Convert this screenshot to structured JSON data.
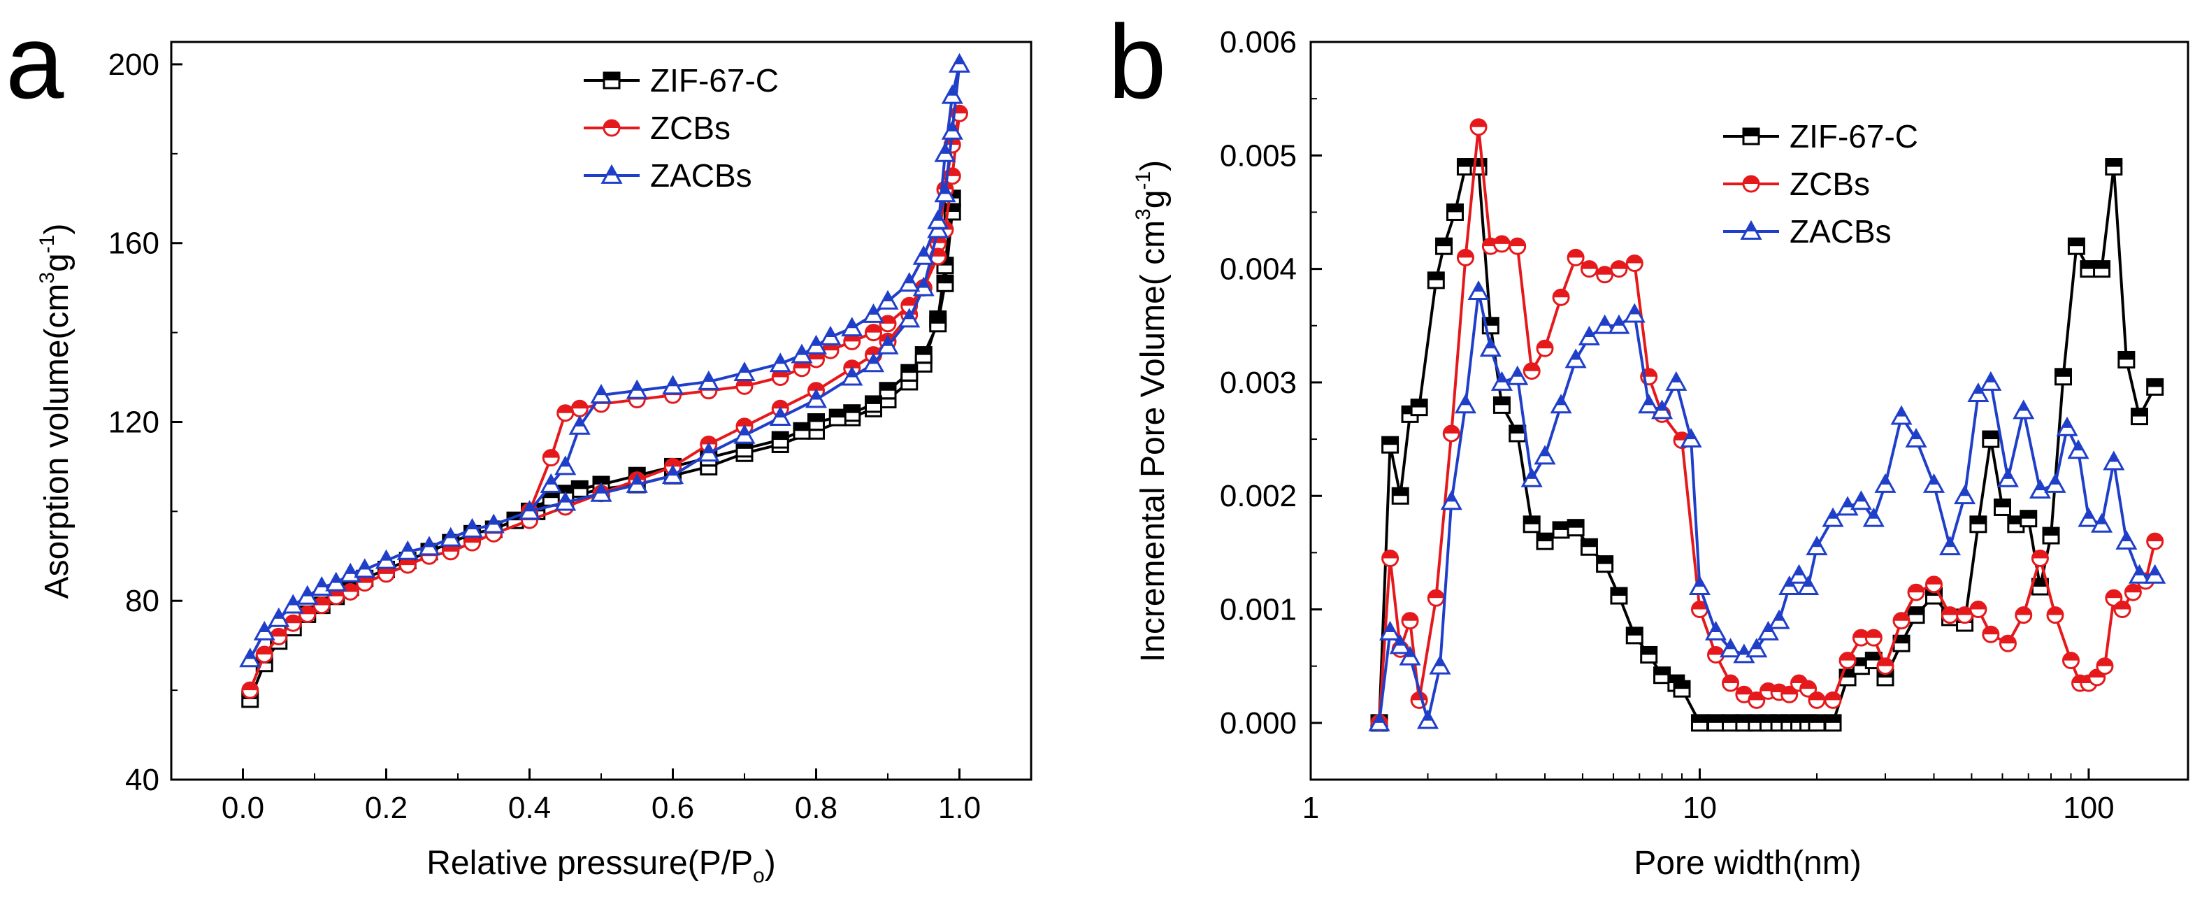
{
  "chart_data": [
    {
      "panel": "a",
      "type": "line",
      "xlabel_main": "Relative pressure(P/P",
      "xlabel_sub": "o",
      "xlabel_end": ")",
      "ylabel_main": "Asorption volume(cm",
      "ylabel_sup1": "3",
      "ylabel_mid": "g",
      "ylabel_sup2": "-1",
      "ylabel_end": ")",
      "xlim": [
        -0.1,
        1.1
      ],
      "ylim": [
        40,
        205
      ],
      "xticks": [
        0.0,
        0.2,
        0.4,
        0.6,
        0.8,
        1.0
      ],
      "xtick_labels": [
        "0.0",
        "0.2",
        "0.4",
        "0.6",
        "0.8",
        "1.0"
      ],
      "yticks": [
        40,
        80,
        120,
        160,
        200
      ],
      "ytick_labels": [
        "40",
        "80",
        "120",
        "160",
        "200"
      ],
      "legend_position": "top-center",
      "series": [
        {
          "name": "ZIF-67-C",
          "color": "#000000",
          "marker": "square",
          "x": [
            0.01,
            0.03,
            0.05,
            0.07,
            0.09,
            0.11,
            0.13,
            0.15,
            0.17,
            0.2,
            0.23,
            0.26,
            0.29,
            0.32,
            0.35,
            0.38,
            0.41,
            0.45,
            0.5,
            0.55,
            0.6,
            0.65,
            0.7,
            0.75,
            0.8,
            0.85,
            0.88,
            0.9,
            0.93,
            0.95,
            0.97,
            0.98,
            0.99,
            0.99,
            0.98,
            0.97,
            0.95,
            0.93,
            0.9,
            0.88,
            0.85,
            0.83,
            0.8,
            0.78,
            0.75,
            0.7,
            0.65,
            0.6,
            0.55,
            0.5,
            0.47,
            0.45,
            0.43,
            0.4
          ],
          "y": [
            58,
            66,
            71,
            74,
            77,
            79,
            81,
            83,
            85,
            87,
            89,
            91,
            93,
            95,
            96,
            98,
            100,
            103,
            105,
            106,
            108,
            110,
            113,
            115,
            118,
            121,
            123,
            125,
            129,
            133,
            143,
            155,
            170,
            167,
            151,
            142,
            135,
            131,
            127,
            124,
            122,
            121,
            120,
            118,
            116,
            114,
            112,
            110,
            108,
            106,
            105,
            104,
            103,
            100
          ]
        },
        {
          "name": "ZCBs",
          "color": "#e5191c",
          "marker": "circle",
          "x": [
            0.01,
            0.03,
            0.05,
            0.07,
            0.09,
            0.11,
            0.13,
            0.15,
            0.17,
            0.2,
            0.23,
            0.26,
            0.29,
            0.32,
            0.35,
            0.4,
            0.45,
            0.5,
            0.55,
            0.6,
            0.65,
            0.7,
            0.75,
            0.8,
            0.85,
            0.88,
            0.9,
            0.93,
            0.95,
            0.97,
            0.98,
            0.99,
            1.0,
            0.99,
            0.98,
            0.97,
            0.95,
            0.93,
            0.9,
            0.88,
            0.85,
            0.82,
            0.8,
            0.78,
            0.75,
            0.7,
            0.65,
            0.6,
            0.55,
            0.5,
            0.47,
            0.45,
            0.43,
            0.4
          ],
          "y": [
            60,
            68,
            72,
            75,
            77,
            79,
            81,
            82,
            84,
            86,
            88,
            90,
            91,
            93,
            95,
            98,
            101,
            104,
            107,
            110,
            115,
            119,
            123,
            127,
            132,
            135,
            138,
            144,
            150,
            160,
            172,
            182,
            189,
            175,
            163,
            157,
            150,
            146,
            142,
            140,
            138,
            136,
            134,
            132,
            130,
            128,
            127,
            126,
            125,
            124,
            123,
            122,
            112,
            100
          ]
        },
        {
          "name": "ZACBs",
          "color": "#1f3fc9",
          "marker": "triangle",
          "x": [
            0.01,
            0.03,
            0.05,
            0.07,
            0.09,
            0.11,
            0.13,
            0.15,
            0.17,
            0.2,
            0.23,
            0.26,
            0.29,
            0.32,
            0.35,
            0.4,
            0.45,
            0.5,
            0.55,
            0.6,
            0.65,
            0.7,
            0.75,
            0.8,
            0.85,
            0.88,
            0.9,
            0.93,
            0.95,
            0.97,
            0.98,
            0.99,
            1.0,
            0.99,
            0.98,
            0.97,
            0.95,
            0.93,
            0.9,
            0.88,
            0.85,
            0.82,
            0.8,
            0.78,
            0.75,
            0.7,
            0.65,
            0.6,
            0.55,
            0.5,
            0.47,
            0.45,
            0.43,
            0.4
          ],
          "y": [
            67,
            73,
            76,
            79,
            81,
            83,
            84,
            86,
            87,
            89,
            91,
            92,
            94,
            96,
            97,
            100,
            102,
            104,
            106,
            108,
            113,
            117,
            121,
            125,
            130,
            133,
            137,
            143,
            150,
            163,
            180,
            193,
            200,
            185,
            171,
            165,
            157,
            151,
            147,
            144,
            141,
            139,
            137,
            135,
            133,
            131,
            129,
            128,
            127,
            126,
            119,
            110,
            106,
            100
          ]
        }
      ]
    },
    {
      "panel": "b",
      "type": "line",
      "xscale": "log",
      "xlabel": "Pore width(nm)",
      "ylabel_main": "Incremental Pore Volume( cm",
      "ylabel_sup1": "3",
      "ylabel_mid": "g",
      "ylabel_sup2": "-1",
      "ylabel_end": ")",
      "xlim": [
        1,
        180
      ],
      "ylim": [
        -0.0005,
        0.006
      ],
      "xticks": [
        1,
        10,
        100
      ],
      "xtick_labels": [
        "1",
        "10",
        "100"
      ],
      "yticks": [
        0.0,
        0.001,
        0.002,
        0.003,
        0.004,
        0.005,
        0.006
      ],
      "ytick_labels": [
        "0.000",
        "0.001",
        "0.002",
        "0.003",
        "0.004",
        "0.005",
        "0.006"
      ],
      "legend_position": "top-right",
      "series": [
        {
          "name": "ZIF-67-C",
          "color": "#000000",
          "marker": "square",
          "x": [
            1.5,
            1.6,
            1.7,
            1.8,
            1.9,
            2.1,
            2.2,
            2.35,
            2.5,
            2.7,
            2.9,
            3.1,
            3.4,
            3.7,
            4.0,
            4.4,
            4.8,
            5.2,
            5.7,
            6.2,
            6.8,
            7.4,
            8.0,
            8.7,
            9.0,
            10.0,
            11.0,
            12.0,
            13.0,
            14.0,
            15.0,
            16.0,
            17.0,
            18.0,
            19.0,
            20.0,
            22.0,
            24.0,
            26.0,
            28.0,
            30.0,
            33.0,
            36.0,
            40.0,
            44.0,
            48.0,
            52.0,
            56.0,
            60.0,
            65.0,
            70.0,
            75.0,
            80.0,
            86.0,
            93.0,
            100.0,
            108.0,
            116.0,
            125.0,
            135.0,
            148.0
          ],
          "y": [
            0.0,
            0.00245,
            0.002,
            0.00272,
            0.00278,
            0.0039,
            0.0042,
            0.0045,
            0.0049,
            0.0049,
            0.0035,
            0.0028,
            0.00255,
            0.00175,
            0.0016,
            0.0017,
            0.00172,
            0.00155,
            0.0014,
            0.00112,
            0.00077,
            0.0006,
            0.00042,
            0.00035,
            0.0003,
            0.0,
            0.0,
            0.0,
            0.0,
            0.0,
            0.0,
            0.0,
            0.0,
            0.0,
            0.0,
            0.0,
            0.0,
            0.0004,
            0.0005,
            0.00055,
            0.0004,
            0.0007,
            0.00095,
            0.00112,
            0.00093,
            0.00088,
            0.00175,
            0.0025,
            0.0019,
            0.00175,
            0.0018,
            0.0012,
            0.00165,
            0.00305,
            0.0042,
            0.004,
            0.004,
            0.0049,
            0.0032,
            0.0027,
            0.00296
          ]
        },
        {
          "name": "ZCBs",
          "color": "#e5191c",
          "marker": "circle",
          "x": [
            1.5,
            1.6,
            1.7,
            1.8,
            1.9,
            2.1,
            2.3,
            2.5,
            2.7,
            2.9,
            3.1,
            3.4,
            3.7,
            4.0,
            4.4,
            4.8,
            5.2,
            5.7,
            6.2,
            6.8,
            7.4,
            8.0,
            9.0,
            10.0,
            11.0,
            12.0,
            13.0,
            14.0,
            15.0,
            16.0,
            17.0,
            18.0,
            19.0,
            20.0,
            22.0,
            24.0,
            26.0,
            28.0,
            30.0,
            33.0,
            36.0,
            40.0,
            44.0,
            48.0,
            52.0,
            56.0,
            62.0,
            68.0,
            75.0,
            82.0,
            90.0,
            95.0,
            100.0,
            105.0,
            110.0,
            116.0,
            122.0,
            130.0,
            140.0,
            148.0
          ],
          "y": [
            0.0,
            0.00145,
            0.00065,
            0.0009,
            0.0002,
            0.0011,
            0.00255,
            0.0041,
            0.00525,
            0.0042,
            0.00422,
            0.0042,
            0.0031,
            0.0033,
            0.00375,
            0.0041,
            0.004,
            0.00395,
            0.004,
            0.00405,
            0.00305,
            0.00272,
            0.00249,
            0.001,
            0.0006,
            0.00035,
            0.00025,
            0.0002,
            0.00028,
            0.00027,
            0.00025,
            0.00035,
            0.0003,
            0.0002,
            0.0002,
            0.00055,
            0.00075,
            0.00075,
            0.0005,
            0.0009,
            0.00115,
            0.00122,
            0.00095,
            0.00095,
            0.001,
            0.00078,
            0.0007,
            0.00095,
            0.00145,
            0.00095,
            0.00055,
            0.00035,
            0.00035,
            0.0004,
            0.0005,
            0.0011,
            0.001,
            0.00115,
            0.00125,
            0.0016
          ]
        },
        {
          "name": "ZACBs",
          "color": "#1f3fc9",
          "marker": "triangle",
          "x": [
            1.5,
            1.6,
            1.7,
            1.8,
            2.0,
            2.15,
            2.3,
            2.5,
            2.7,
            2.9,
            3.1,
            3.4,
            3.7,
            4.0,
            4.4,
            4.8,
            5.2,
            5.7,
            6.2,
            6.8,
            7.4,
            8.0,
            8.7,
            9.5,
            10.0,
            11.0,
            12.0,
            13.0,
            14.0,
            15.0,
            16.0,
            17.0,
            18.0,
            19.0,
            20.0,
            22.0,
            24.0,
            26.0,
            28.0,
            30.0,
            33.0,
            36.0,
            40.0,
            44.0,
            48.0,
            52.0,
            56.0,
            62.0,
            68.0,
            75.0,
            82.0,
            88.0,
            94.0,
            100.0,
            108.0,
            116.0,
            125.0,
            135.0,
            148.0
          ],
          "y": [
            0.0,
            0.0008,
            0.00068,
            0.00058,
            2e-05,
            0.0005,
            0.00195,
            0.0028,
            0.0038,
            0.0033,
            0.003,
            0.00305,
            0.00215,
            0.00235,
            0.0028,
            0.0032,
            0.0034,
            0.0035,
            0.0035,
            0.0036,
            0.0028,
            0.00275,
            0.003,
            0.0025,
            0.0012,
            0.0008,
            0.00065,
            0.0006,
            0.00065,
            0.0008,
            0.0009,
            0.0012,
            0.0013,
            0.0012,
            0.00155,
            0.0018,
            0.0019,
            0.00195,
            0.0018,
            0.0021,
            0.0027,
            0.0025,
            0.0021,
            0.00155,
            0.002,
            0.0029,
            0.003,
            0.00215,
            0.00275,
            0.00205,
            0.0021,
            0.0026,
            0.0024,
            0.0018,
            0.00175,
            0.0023,
            0.0016,
            0.0013,
            0.0013
          ]
        }
      ]
    }
  ]
}
